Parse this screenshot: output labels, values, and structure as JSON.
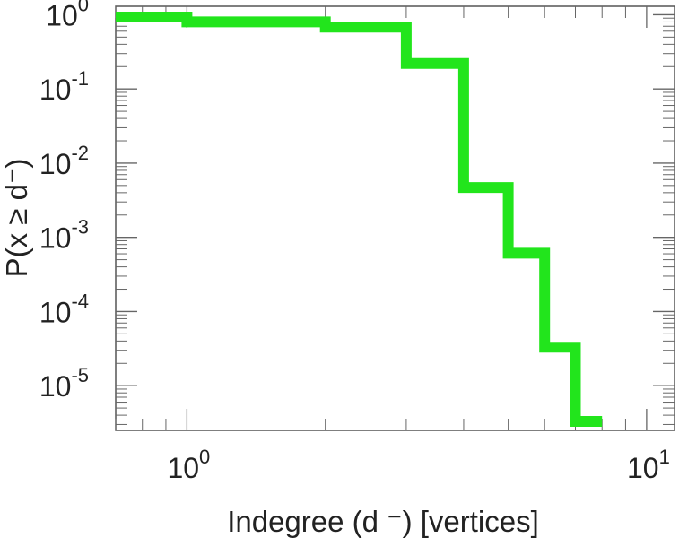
{
  "chart_data": {
    "type": "line",
    "step": true,
    "title": "",
    "xlabel": "Indegree (d  ⁻) [vertices]",
    "ylabel": "P(x ≥ d⁻)",
    "x_scale": "log",
    "y_scale": "log",
    "xlim": [
      0.7,
      11.5
    ],
    "ylim": [
      2.5e-06,
      1.3
    ],
    "grid": false,
    "legend": "none",
    "x_ticks": [
      {
        "value": 1,
        "base": "10",
        "exp": "0"
      },
      {
        "value": 10,
        "base": "10",
        "exp": "1"
      }
    ],
    "y_ticks": [
      {
        "value": 1,
        "base": "10",
        "exp": "0"
      },
      {
        "value": 0.1,
        "base": "10",
        "exp": "-1"
      },
      {
        "value": 0.01,
        "base": "10",
        "exp": "-2"
      },
      {
        "value": 0.001,
        "base": "10",
        "exp": "-3"
      },
      {
        "value": 0.0001,
        "base": "10",
        "exp": "-4"
      },
      {
        "value": 1e-05,
        "base": "10",
        "exp": "-5"
      }
    ],
    "series": [
      {
        "color": "#22e51c",
        "x": [
          0.7,
          1,
          2,
          3,
          4,
          5,
          6,
          7,
          8
        ],
        "y": [
          0.93,
          0.8,
          0.68,
          0.22,
          0.0047,
          0.00061,
          3.3e-05,
          3.3e-06,
          3.3e-06
        ]
      }
    ]
  }
}
